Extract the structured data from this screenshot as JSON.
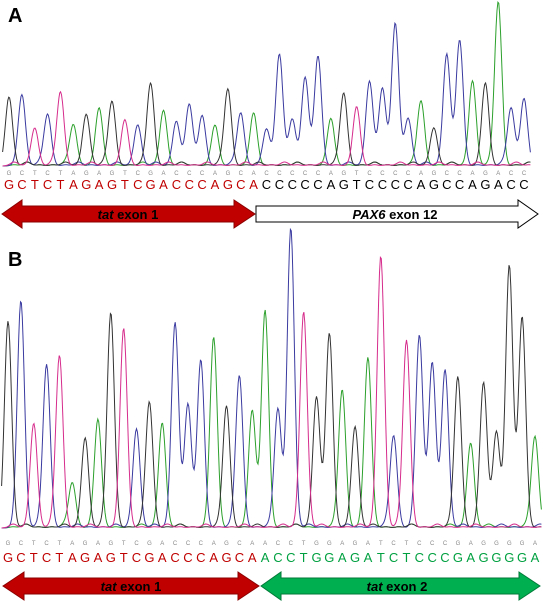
{
  "panels": [
    {
      "letter": "A",
      "sequence": "GCTCTAGAGTCGACCCAGCACCCCCAGTCCCCAGCCAGACC",
      "small_sequence": "GCTCTAGAGTCGACCCAGCACCCCCAGTCCCCAGCCAGACC",
      "red_count": 20,
      "arrows": [
        {
          "italic": "tat",
          "text": " exon 1",
          "fill": "#c00000",
          "stroke": "#8b0000",
          "text_color": "#000000"
        },
        {
          "italic": "PAX6",
          "text": " exon 12",
          "fill": "#ffffff",
          "stroke": "#000000",
          "text_color": "#000000"
        }
      ]
    },
    {
      "letter": "B",
      "sequence": "GCTCTAGAGTCGACCCAGCAACCTGGAGATCTCCCGAGGGGA",
      "small_sequence": "GCTCTAGAGTCGACCCAGCAACCTGGAGATCTCCCGAGGGGA",
      "red_count": 20,
      "arrows": [
        {
          "italic": "tat",
          "text": " exon 1",
          "fill": "#c00000",
          "stroke": "#8b0000",
          "text_color": "#000000"
        },
        {
          "italic": "tat",
          "text": " exon 2",
          "fill": "#00b050",
          "stroke": "#007a38",
          "text_color": "#000000"
        }
      ]
    }
  ],
  "colors": {
    "A": "#2ca02c",
    "C": "#3a3aa0",
    "G": "#333333",
    "T": "#d62c8c",
    "exon1_text": "#c00000",
    "pax6_text": "#000000",
    "exon2_text": "#00a040"
  }
}
